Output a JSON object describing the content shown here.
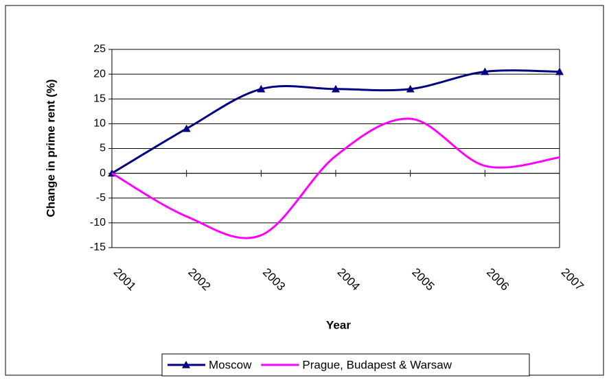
{
  "chart_data": {
    "type": "line",
    "x_label": "Year",
    "y_label": "Change in prime rent (%)",
    "categories": [
      "2001",
      "2002",
      "2003",
      "2004",
      "2005",
      "2006",
      "2007"
    ],
    "series": [
      {
        "name": "Moscow",
        "color": "#000080",
        "marker": "triangle",
        "values": [
          0,
          9,
          17,
          17,
          17,
          20.5,
          20.5
        ]
      },
      {
        "name": "Prague, Budapest & Warsaw",
        "color": "#ff00ff",
        "marker": "none",
        "values": [
          0,
          -8.7,
          -12.5,
          3.5,
          11,
          1.5,
          3.2
        ]
      }
    ],
    "ylim": [
      -15,
      25
    ],
    "yticks": [
      -15,
      -10,
      -5,
      0,
      5,
      10,
      15,
      20,
      25
    ],
    "grid": true,
    "smooth": true,
    "legend": "bottom"
  }
}
